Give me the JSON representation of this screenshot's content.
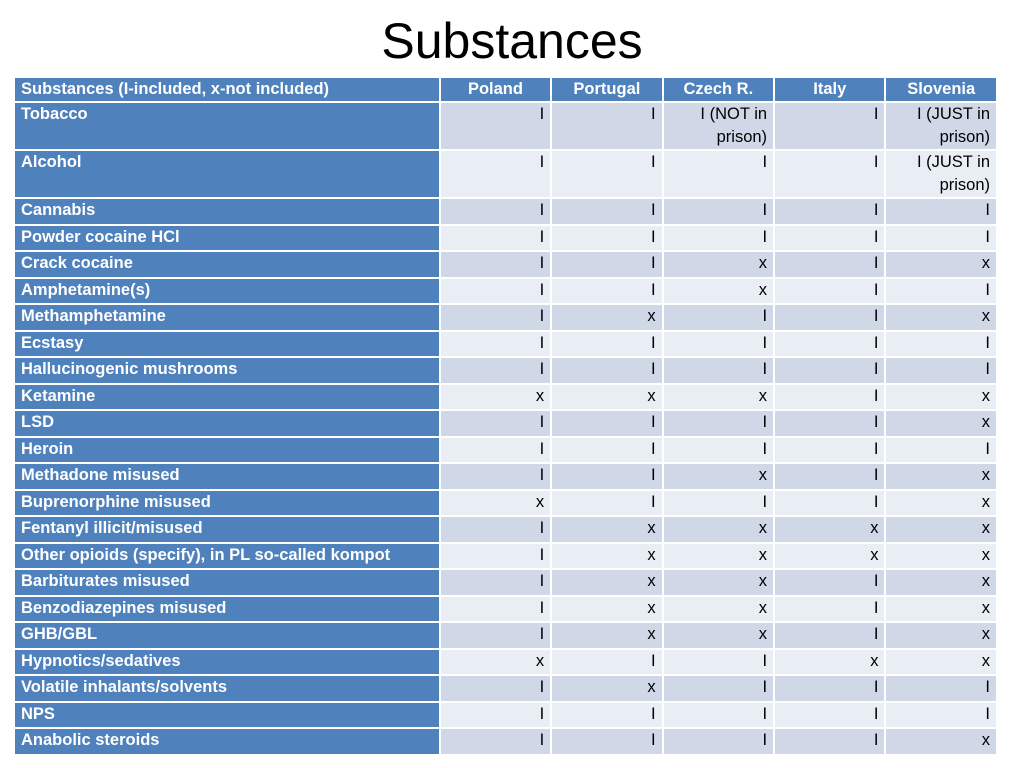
{
  "title": "Substances",
  "table": {
    "headers": [
      "Substances (I-included, x-not included)",
      "Poland",
      "Portugal",
      "Czech R.",
      "Italy",
      "Slovenia"
    ],
    "rows": [
      {
        "substance": "Tobacco",
        "values": [
          "I",
          "I",
          "I (NOT in prison)",
          "I",
          "I (JUST in prison)"
        ]
      },
      {
        "substance": "Alcohol",
        "values": [
          "I",
          "I",
          "I",
          "I",
          "I (JUST in prison)"
        ]
      },
      {
        "substance": "Cannabis",
        "values": [
          "I",
          "I",
          "I",
          "I",
          "I"
        ]
      },
      {
        "substance": "Powder cocaine HCl",
        "values": [
          "I",
          "I",
          "I",
          "I",
          "I"
        ]
      },
      {
        "substance": "Crack cocaine",
        "values": [
          "I",
          "I",
          "x",
          "I",
          "x"
        ]
      },
      {
        "substance": "Amphetamine(s)",
        "values": [
          "I",
          "I",
          "x",
          "I",
          "I"
        ]
      },
      {
        "substance": "Methamphetamine",
        "values": [
          "I",
          "x",
          "I",
          "I",
          "x"
        ]
      },
      {
        "substance": "Ecstasy",
        "values": [
          "I",
          "I",
          "I",
          "I",
          "I"
        ]
      },
      {
        "substance": "Hallucinogenic mushrooms",
        "values": [
          "I",
          "I",
          "I",
          "I",
          "I"
        ]
      },
      {
        "substance": "Ketamine",
        "values": [
          "x",
          "x",
          "x",
          "I",
          "x"
        ]
      },
      {
        "substance": "LSD",
        "values": [
          "I",
          "I",
          "I",
          "I",
          "x"
        ]
      },
      {
        "substance": "Heroin",
        "values": [
          "I",
          "I",
          "I",
          "I",
          "I"
        ]
      },
      {
        "substance": "Methadone misused",
        "values": [
          "I",
          "I",
          "x",
          "I",
          "x"
        ]
      },
      {
        "substance": "Buprenorphine misused",
        "values": [
          "x",
          "I",
          "I",
          "I",
          "x"
        ]
      },
      {
        "substance": "Fentanyl illicit/misused",
        "values": [
          "I",
          "x",
          "x",
          "x",
          "x"
        ]
      },
      {
        "substance": "Other opioids (specify), in PL so-called kompot",
        "values": [
          "I",
          "x",
          "x",
          "x",
          "x"
        ]
      },
      {
        "substance": "Barbiturates misused",
        "values": [
          "I",
          "x",
          "x",
          "I",
          "x"
        ]
      },
      {
        "substance": "Benzodiazepines misused",
        "values": [
          "I",
          "x",
          "x",
          "I",
          "x"
        ]
      },
      {
        "substance": "GHB/GBL",
        "values": [
          "I",
          "x",
          "x",
          "I",
          "x"
        ]
      },
      {
        "substance": "Hypnotics/sedatives",
        "values": [
          "x",
          "I",
          "I",
          "x",
          "x"
        ]
      },
      {
        "substance": "Volatile inhalants/solvents",
        "values": [
          "I",
          "x",
          "I",
          "I",
          "I"
        ]
      },
      {
        "substance": "NPS",
        "values": [
          "I",
          "I",
          "I",
          "I",
          "I"
        ]
      },
      {
        "substance": "Anabolic steroids",
        "values": [
          "I",
          "I",
          "I",
          "I",
          "x"
        ]
      }
    ]
  },
  "colors": {
    "header_bg": "#4f81bd",
    "header_text": "#ffffff",
    "row_band_dark": "#d0d8e8",
    "row_band_light": "#e9edf4"
  }
}
